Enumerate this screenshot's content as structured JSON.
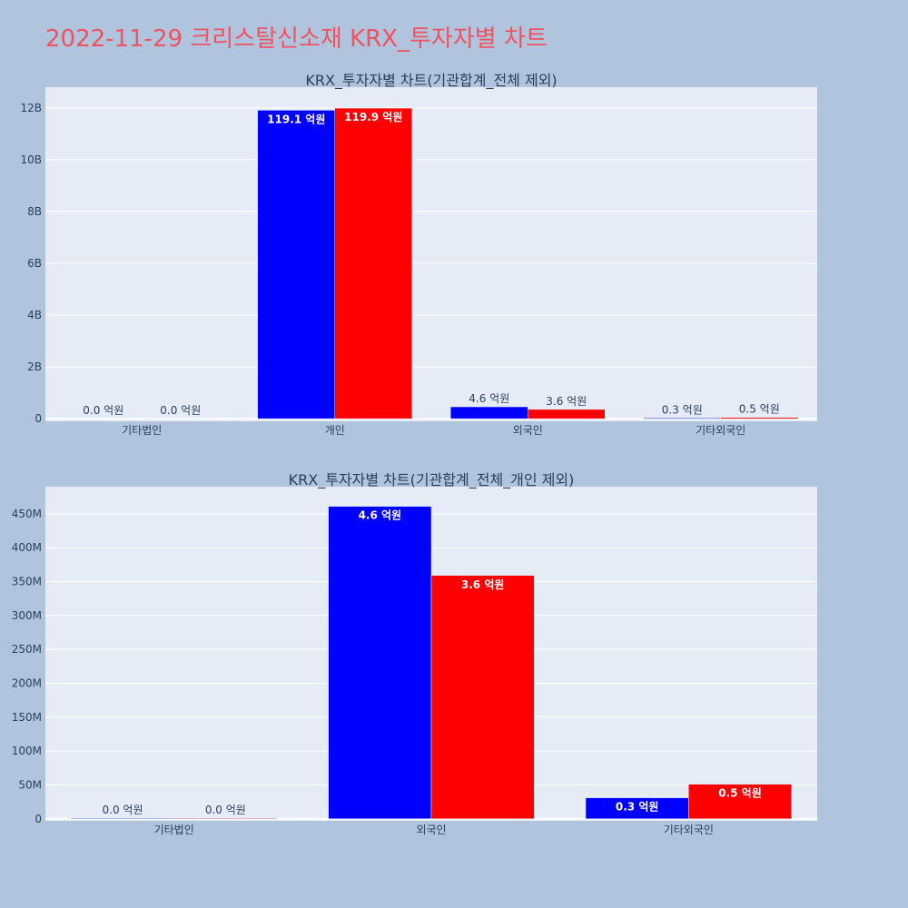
{
  "page": {
    "title": "2022-11-29 크리스탈신소재 KRX_투자자별 차트"
  },
  "colors": {
    "background": "#b0c4de",
    "plot_background": "#e5ecf6",
    "title": "#ef5360",
    "series_blue": "#0000ff",
    "series_red": "#ff0000",
    "text": "#2a3f5f"
  },
  "chart_data": [
    {
      "type": "bar",
      "title": "KRX_투자자별 차트(기관합계_전체 제외)",
      "categories": [
        "기타법인",
        "개인",
        "외국인",
        "기타외국인"
      ],
      "series": [
        {
          "color": "#0000ff",
          "values": [
            0,
            11910000000,
            460000000,
            30000000
          ],
          "labels": [
            "0.0 억원",
            "119.1 억원",
            "4.6 억원",
            "0.3 억원"
          ]
        },
        {
          "color": "#ff0000",
          "values": [
            1000000,
            11990000000,
            360000000,
            50000000
          ],
          "labels": [
            "0.0 억원",
            "119.9 억원",
            "3.6 억원",
            "0.5 억원"
          ]
        }
      ],
      "ylim": [
        -100000000,
        12800000000
      ],
      "yticks": [
        0,
        2000000000,
        4000000000,
        6000000000,
        8000000000,
        10000000000,
        12000000000
      ],
      "ytick_labels": [
        "0",
        "2B",
        "4B",
        "6B",
        "8B",
        "10B",
        "12B"
      ],
      "grid": true,
      "legend": "none"
    },
    {
      "type": "bar",
      "title": "KRX_투자자별 차트(기관합계_전체_개인 제외)",
      "categories": [
        "기타법인",
        "외국인",
        "기타외국인"
      ],
      "series": [
        {
          "color": "#0000ff",
          "values": [
            1000000,
            461000000,
            31000000
          ],
          "labels": [
            "0.0 억원",
            "4.6 억원",
            "0.3 억원"
          ]
        },
        {
          "color": "#ff0000",
          "values": [
            1000000,
            359000000,
            51000000
          ],
          "labels": [
            "0.0 억원",
            "3.6 억원",
            "0.5 억원"
          ]
        }
      ],
      "ylim": [
        -3000000,
        490000000
      ],
      "yticks": [
        0,
        50000000,
        100000000,
        150000000,
        200000000,
        250000000,
        300000000,
        350000000,
        400000000,
        450000000
      ],
      "ytick_labels": [
        "0",
        "50M",
        "100M",
        "150M",
        "200M",
        "250M",
        "300M",
        "350M",
        "400M",
        "450M"
      ],
      "grid": true,
      "legend": "none"
    }
  ]
}
